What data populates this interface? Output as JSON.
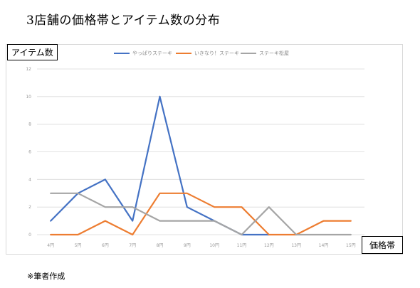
{
  "page": {
    "title": "3店舗の価格帯とアイテム数の分布",
    "footnote": "※筆者作成"
  },
  "chart_data": {
    "type": "line",
    "title": "",
    "xlabel": "価格帯",
    "ylabel": "アイテム数",
    "categories": [
      "4円",
      "5円",
      "6円",
      "7円",
      "8円",
      "9円",
      "10円",
      "11円",
      "12円",
      "13円",
      "14円",
      "15円"
    ],
    "y_ticks": [
      "0",
      "2",
      "4",
      "6",
      "8",
      "10",
      "12"
    ],
    "ylim": [
      0,
      12
    ],
    "grid": "horizontal",
    "legend_position": "top",
    "series": [
      {
        "name": "やっぱりステーキ",
        "color": "#4472c4",
        "values": [
          1,
          3,
          4,
          1,
          10,
          2,
          1,
          0,
          0,
          null,
          null,
          null
        ]
      },
      {
        "name": "いきなり！ステーキ",
        "color": "#ed7d31",
        "values": [
          0,
          0,
          1,
          0,
          3,
          3,
          2,
          2,
          0,
          0,
          1,
          1
        ]
      },
      {
        "name": "ステーキ松屋",
        "color": "#a5a5a5",
        "values": [
          3,
          3,
          2,
          2,
          1,
          1,
          1,
          0,
          2,
          0,
          0,
          0
        ]
      }
    ]
  }
}
